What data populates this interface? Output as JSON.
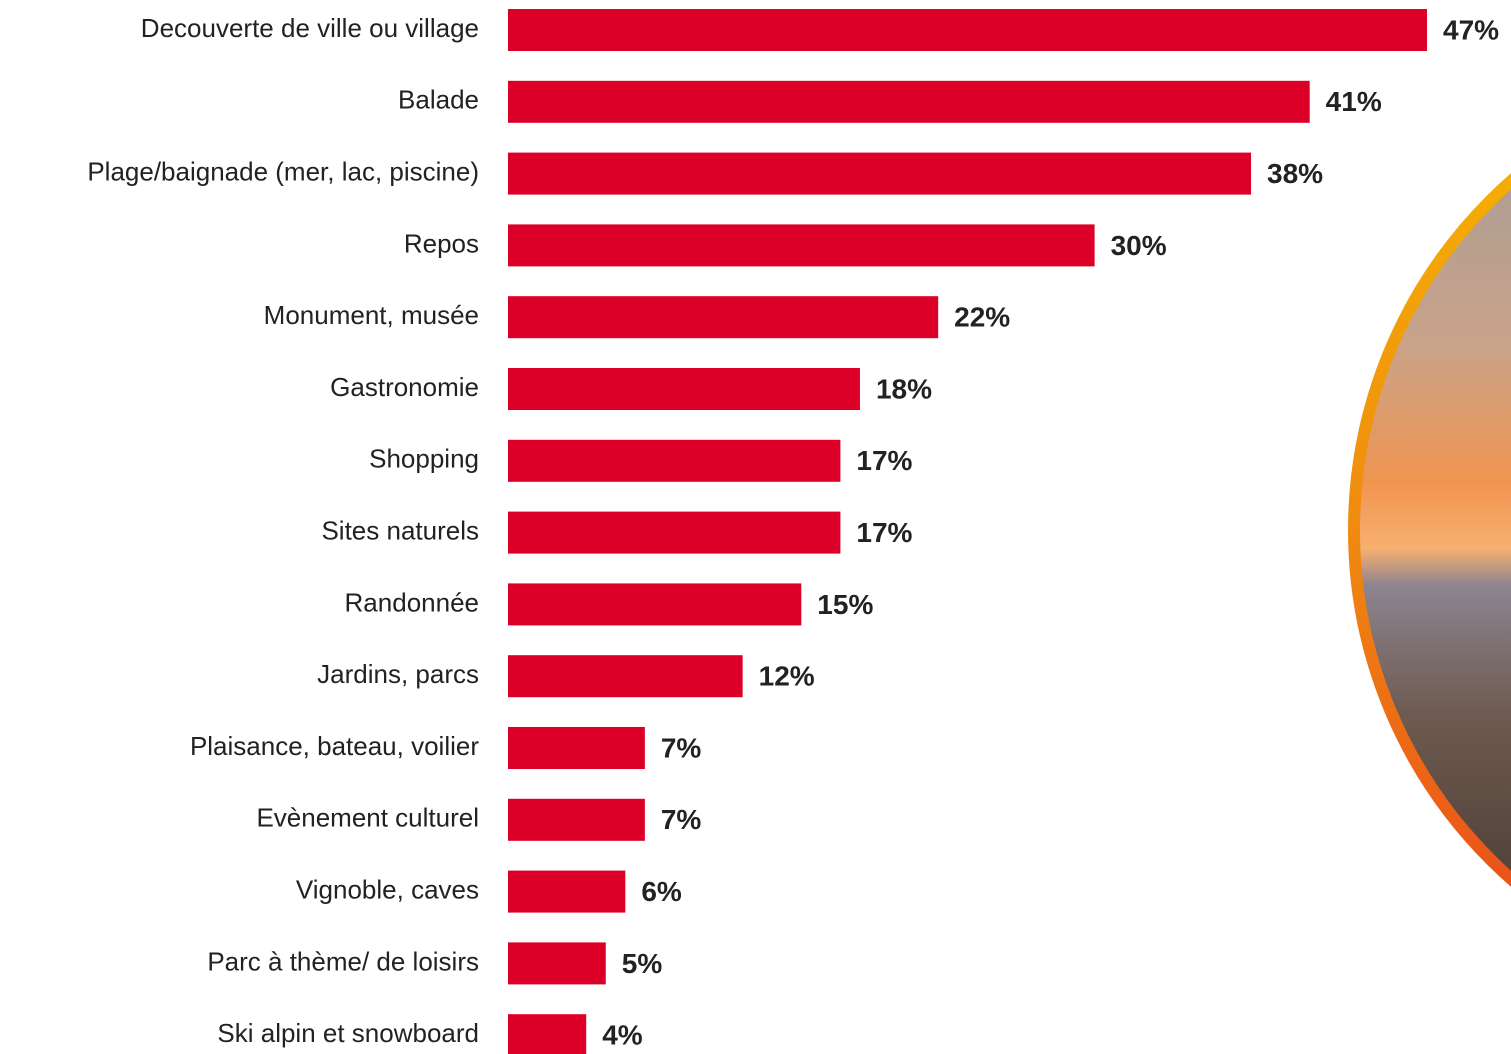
{
  "chart_data": {
    "type": "bar",
    "orientation": "horizontal",
    "color": "#dc0028",
    "categories": [
      "Decouverte de ville ou village",
      "Balade",
      "Plage/baignade (mer, lac, piscine)",
      "Repos",
      "Monument, musée",
      "Gastronomie",
      "Shopping",
      "Sites naturels",
      "Randonnée",
      "Jardins, parcs",
      "Plaisance, bateau, voilier",
      "Evènement culturel",
      "Vignoble, caves",
      "Parc à thème/ de loisirs",
      "Ski alpin et snowboard"
    ],
    "values": [
      47,
      41,
      38,
      30,
      22,
      18,
      17,
      17,
      15,
      12,
      7,
      7,
      6,
      5,
      4
    ],
    "value_labels": [
      "47%",
      "41%",
      "38%",
      "30%",
      "22%",
      "18%",
      "17%",
      "17%",
      "15%",
      "12%",
      "7%",
      "7%",
      "6%",
      "5%",
      "4%"
    ]
  }
}
